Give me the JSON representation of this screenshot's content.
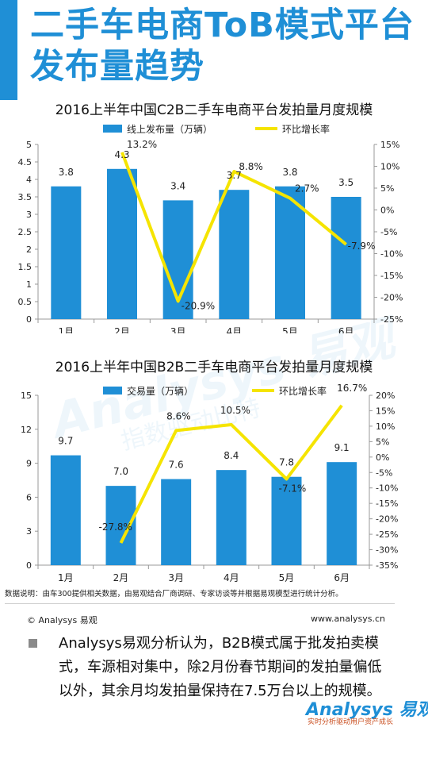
{
  "header": {
    "title": "二手车电商ToB模式平台发布量趋势"
  },
  "watermark": {
    "brand": "Analysys 易观",
    "slogan": "指数驱动比特"
  },
  "chart_data": [
    {
      "type": "bar+line",
      "title": "2016上半年中国C2B二手车电商平台发拍量月度规模",
      "categories": [
        "1月",
        "2月",
        "3月",
        "4月",
        "5月",
        "6月"
      ],
      "series": [
        {
          "name": "线上发布量（万辆）",
          "type": "bar",
          "axis": "left",
          "values": [
            3.8,
            4.3,
            3.4,
            3.7,
            3.8,
            3.5
          ],
          "labels": [
            "3.8",
            "4.3",
            "3.4",
            "3.7",
            "3.8",
            "3.5"
          ]
        },
        {
          "name": "环比增长率",
          "type": "line",
          "axis": "right",
          "values": [
            null,
            13.2,
            -20.9,
            8.8,
            2.7,
            -7.9
          ],
          "labels": [
            "",
            "13.2%",
            "-20.9%",
            "8.8%",
            "2.7%",
            "-7.9%"
          ]
        }
      ],
      "y_left": {
        "min": 0,
        "max": 5,
        "ticks": [
          "0",
          "0.5",
          "1",
          "1.5",
          "2",
          "2.5",
          "3",
          "3.5",
          "4",
          "4.5",
          "5"
        ]
      },
      "y_right": {
        "min": -25,
        "max": 15,
        "ticks": [
          "-25%",
          "-20%",
          "-15%",
          "-10%",
          "-5%",
          "0%",
          "5%",
          "10%",
          "15%"
        ]
      },
      "legend": "top",
      "colors": {
        "bar": "#1f8fd6",
        "line": "#f5e400"
      }
    },
    {
      "type": "bar+line",
      "title": "2016上半年中国B2B二手车电商平台发拍量月度规模",
      "categories": [
        "1月",
        "2月",
        "3月",
        "4月",
        "5月",
        "6月"
      ],
      "series": [
        {
          "name": "交易量（万辆）",
          "type": "bar",
          "axis": "left",
          "values": [
            9.7,
            7.0,
            7.6,
            8.4,
            7.8,
            9.1
          ],
          "labels": [
            "9.7",
            "7.0",
            "7.6",
            "8.4",
            "7.8",
            "9.1"
          ]
        },
        {
          "name": "环比增长率",
          "type": "line",
          "axis": "right",
          "values": [
            null,
            -27.8,
            8.6,
            10.5,
            -7.1,
            16.7
          ],
          "labels": [
            "",
            "-27.8%",
            "8.6%",
            "10.5%",
            "-7.1%",
            "16.7%"
          ]
        }
      ],
      "y_left": {
        "min": 0,
        "max": 15,
        "ticks": [
          "0",
          "3",
          "6",
          "9",
          "12",
          "15"
        ]
      },
      "y_right": {
        "min": -35,
        "max": 20,
        "ticks": [
          "-35%",
          "-30%",
          "-25%",
          "-20%",
          "-15%",
          "-10%",
          "-5%",
          "0%",
          "5%",
          "10%",
          "15%",
          "20%"
        ]
      },
      "legend": "top",
      "colors": {
        "bar": "#1f8fd6",
        "line": "#f5e400"
      }
    }
  ],
  "note": "数据说明：由车300提供相关数据，由易观结合厂商调研、专家访谈等并根据易观模型进行统计分析。",
  "footer": {
    "copyright": "© Analysys 易观",
    "website": "www.analysys.cn"
  },
  "bullet": {
    "text": "Analysys易观分析认为，B2B模式属于批发拍卖模式，车源相对集中，除2月份春节期间的发拍量偏低以外，其余月均发拍量保持在7.5万台以上的规模。"
  },
  "logo": {
    "main": "Analysys 易观",
    "tagline": "实时分析驱动用户资产成长"
  }
}
